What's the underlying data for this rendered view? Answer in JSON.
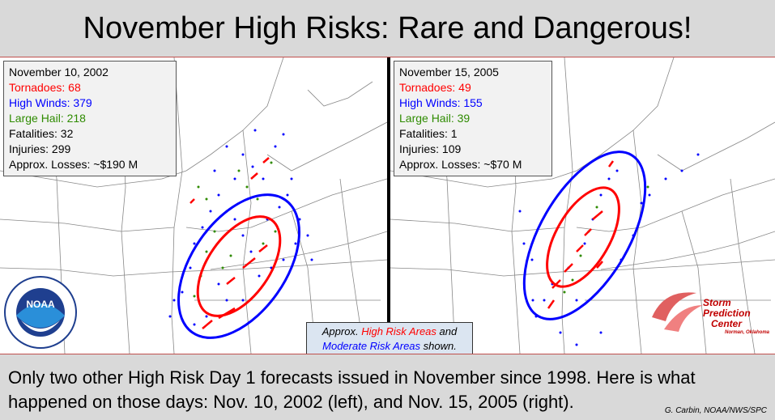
{
  "title": "November High Risks: Rare and Dangerous!",
  "left_event": {
    "date": "November 10, 2002",
    "tornadoes": "Tornadoes: 68",
    "high_winds": "High Winds: 379",
    "large_hail": "Large Hail: 218",
    "fatalities": "Fatalities: 32",
    "injuries": "Injuries: 299",
    "losses": "Approx. Losses: ~$190 M"
  },
  "right_event": {
    "date": "November 15, 2005",
    "tornadoes": "Tornadoes: 49",
    "high_winds": "High Winds: 155",
    "large_hail": "Large Hail: 39",
    "fatalities": "Fatalities: 1",
    "injuries": "Injuries: 109",
    "losses": "Approx. Losses: ~$70 M"
  },
  "legend": {
    "prefix": "Approx. ",
    "high_risk": "High Risk Areas",
    "and": " and",
    "moderate_risk": "Moderate Risk Areas",
    "suffix": " shown."
  },
  "footer": {
    "text": "Only two other High Risk Day 1 forecasts issued in November since 1998. Here is what happened on those days: Nov. 10, 2002  (left), and Nov. 15, 2005 (right).",
    "credit": "G. Carbin, NOAA/NWS/SPC"
  },
  "logos": {
    "noaa_label": "NOAA",
    "spc_line1": "Storm",
    "spc_line2": "Prediction",
    "spc_line3": "Center",
    "spc_line4": "Norman, Oklahoma"
  },
  "colors": {
    "tornado": "#ff0000",
    "wind": "#0000ff",
    "hail": "#2e8b00",
    "high_risk_outline": "#ff0000",
    "moderate_risk_outline": "#0000ff"
  }
}
